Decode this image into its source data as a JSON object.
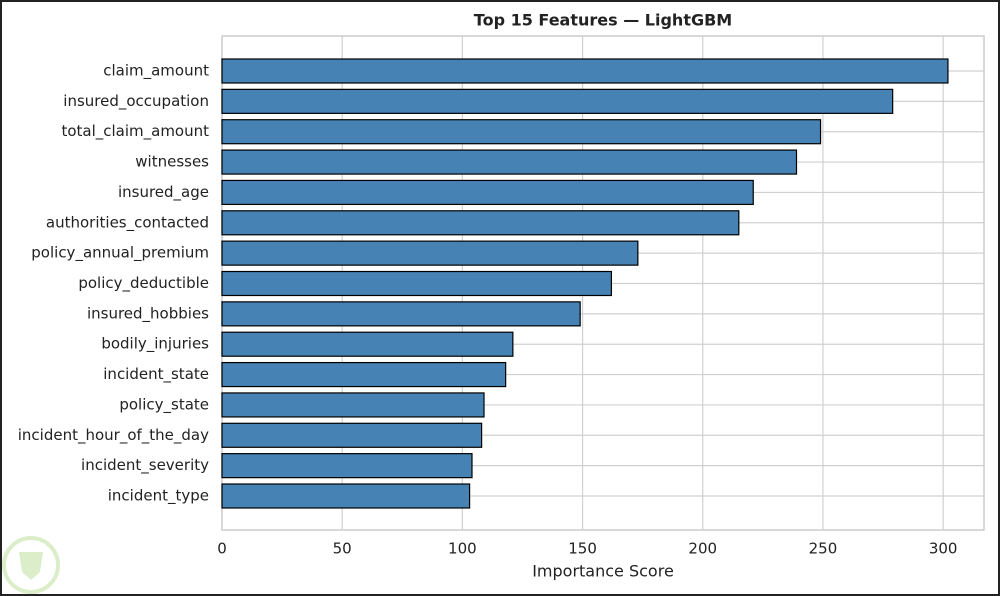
{
  "chart_data": {
    "type": "barh",
    "title": "Top 15 Features — LightGBM",
    "xlabel": "Importance Score",
    "categories": [
      "claim_amount",
      "insured_occupation",
      "total_claim_amount",
      "witnesses",
      "insured_age",
      "authorities_contacted",
      "policy_annual_premium",
      "policy_deductible",
      "insured_hobbies",
      "bodily_injuries",
      "incident_state",
      "policy_state",
      "incident_hour_of_the_day",
      "incident_severity",
      "incident_type"
    ],
    "values": [
      302,
      279,
      249,
      239,
      221,
      215,
      173,
      162,
      149,
      121,
      118,
      109,
      108,
      104,
      103
    ],
    "color": "#4682b4",
    "xlim": [
      0,
      317
    ],
    "xticks": [
      0,
      50,
      100,
      150,
      200,
      250,
      300
    ],
    "grid": true
  }
}
